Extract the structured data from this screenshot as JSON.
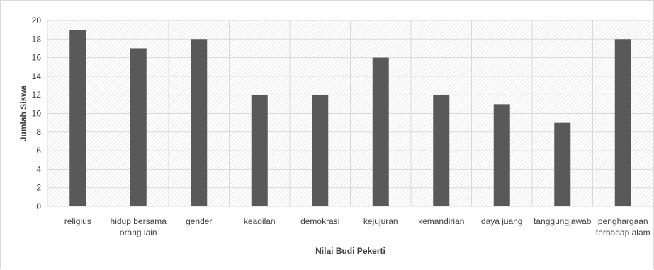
{
  "chart_data": {
    "type": "bar",
    "xlabel": "Nilai Budi Pekerti",
    "ylabel": "Jumlah Siswa",
    "ylim": [
      0,
      20
    ],
    "ytick_step": 2,
    "grid": true,
    "categories": [
      "religius",
      "hidup bersama orang lain",
      "gender",
      "keadilan",
      "demokrasi",
      "kejujuran",
      "kemandirian",
      "daya juang",
      "tanggungjawab",
      "penghargaan terhadap alam"
    ],
    "category_lines": [
      [
        "religius"
      ],
      [
        "hidup bersama",
        "orang lain"
      ],
      [
        "gender"
      ],
      [
        "keadilan"
      ],
      [
        "demokrasi"
      ],
      [
        "kejujuran"
      ],
      [
        "kemandirian"
      ],
      [
        "daya juang"
      ],
      [
        "tanggungjawab"
      ],
      [
        "penghargaan",
        "terhadap alam"
      ]
    ],
    "values": [
      19,
      17,
      18,
      12,
      12,
      16,
      12,
      11,
      9,
      18
    ],
    "colors": {
      "bar": "#595959",
      "grid": "#d9d9d9",
      "hatch": "#e3e3e3",
      "text": "#404040"
    }
  }
}
